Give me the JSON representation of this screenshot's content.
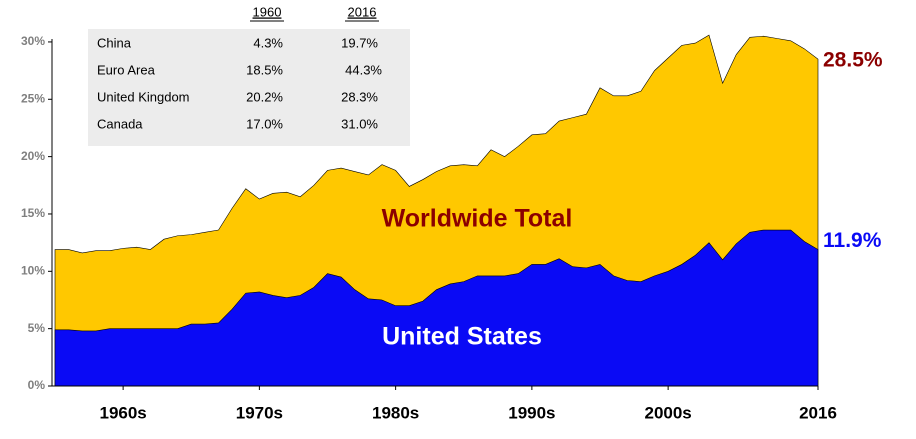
{
  "chart_data": {
    "type": "area",
    "x": [
      1960,
      1961,
      1962,
      1963,
      1964,
      1965,
      1966,
      1967,
      1968,
      1969,
      1970,
      1971,
      1972,
      1973,
      1974,
      1975,
      1976,
      1977,
      1978,
      1979,
      1980,
      1981,
      1982,
      1983,
      1984,
      1985,
      1986,
      1987,
      1988,
      1989,
      1990,
      1991,
      1992,
      1993,
      1994,
      1995,
      1996,
      1997,
      1998,
      1999,
      2000,
      2001,
      2002,
      2003,
      2004,
      2005,
      2006,
      2007,
      2008,
      2009,
      2010,
      2011,
      2012,
      2013,
      2014,
      2015,
      2016
    ],
    "series": [
      {
        "name": "Worldwide Total",
        "color": "#ffc800",
        "label_color": "#8b0000",
        "value_label_color": "#8b0000",
        "values": [
          11.9,
          11.9,
          11.6,
          11.8,
          11.8,
          12.0,
          12.1,
          11.9,
          12.8,
          13.1,
          13.2,
          13.4,
          13.6,
          15.5,
          17.2,
          16.3,
          16.8,
          16.9,
          16.5,
          17.5,
          18.8,
          19.0,
          18.7,
          18.4,
          19.3,
          18.8,
          17.4,
          18.0,
          18.7,
          19.2,
          19.3,
          19.2,
          20.6,
          20.0,
          20.9,
          21.9,
          22.0,
          23.1,
          23.4,
          23.7,
          26.0,
          25.3,
          25.3,
          25.7,
          27.5,
          28.6,
          29.7,
          29.9,
          30.6,
          26.4,
          28.9,
          30.4,
          30.5,
          30.3,
          30.1,
          29.4,
          28.5
        ],
        "value_labels": [
          null,
          null,
          null,
          null,
          null,
          null,
          null,
          null,
          null,
          null,
          null,
          null,
          null,
          null,
          null,
          null,
          null,
          null,
          null,
          null,
          null,
          null,
          null,
          null,
          null,
          null,
          null,
          null,
          null,
          null,
          null,
          null,
          null,
          null,
          null,
          null,
          null,
          null,
          null,
          null,
          null,
          null,
          null,
          null,
          null,
          null,
          null,
          null,
          null,
          null,
          null,
          null,
          null,
          null,
          null,
          null,
          "28.5%"
        ]
      },
      {
        "name": "United States",
        "color": "#0a0af5",
        "label_color": "#ffffff",
        "value_label_color": "#0a0af5",
        "values": [
          4.9,
          4.9,
          4.8,
          4.8,
          5.0,
          5.0,
          5.0,
          5.0,
          5.0,
          5.0,
          5.4,
          5.4,
          5.5,
          6.7,
          8.1,
          8.2,
          7.9,
          7.7,
          7.9,
          8.6,
          9.8,
          9.5,
          8.4,
          7.6,
          7.5,
          7.0,
          7.0,
          7.4,
          8.4,
          8.9,
          9.1,
          9.6,
          9.6,
          9.6,
          9.8,
          10.6,
          10.6,
          11.1,
          10.4,
          10.3,
          10.6,
          9.6,
          9.2,
          9.1,
          9.6,
          10.0,
          10.6,
          11.4,
          12.5,
          11.0,
          12.4,
          13.4,
          13.6,
          13.6,
          13.6,
          12.6,
          11.9
        ],
        "value_labels": [
          null,
          null,
          null,
          null,
          null,
          null,
          null,
          null,
          null,
          null,
          null,
          null,
          null,
          null,
          null,
          null,
          null,
          null,
          null,
          null,
          null,
          null,
          null,
          null,
          null,
          null,
          null,
          null,
          null,
          null,
          null,
          null,
          null,
          null,
          null,
          null,
          null,
          null,
          null,
          null,
          null,
          null,
          null,
          null,
          null,
          null,
          null,
          null,
          null,
          null,
          null,
          null,
          null,
          null,
          null,
          null,
          "11.9%"
        ]
      }
    ],
    "xlim": [
      1960,
      2016
    ],
    "xticks": [
      {
        "value": 1965,
        "label": "1960s"
      },
      {
        "value": 1975,
        "label": "1970s"
      },
      {
        "value": 1985,
        "label": "1980s"
      },
      {
        "value": 1995,
        "label": "1990s"
      },
      {
        "value": 2005,
        "label": "2000s"
      },
      2016
    ],
    "ylim": [
      0,
      32
    ],
    "yticks": [
      {
        "value": 0,
        "label": "0%"
      },
      {
        "value": 5,
        "label": "5%"
      },
      {
        "value": 10,
        "label": "10%"
      },
      {
        "value": 15,
        "label": "15%"
      },
      {
        "value": 20,
        "label": "20%"
      },
      {
        "value": 25,
        "label": "25%"
      },
      {
        "value": 30,
        "label": "30%"
      }
    ],
    "table": {
      "columns": [
        "1960",
        "2016"
      ],
      "rows": [
        [
          "China",
          "4.3%",
          "19.7%"
        ],
        [
          "Euro Area",
          "18.5%",
          "44.3%"
        ],
        [
          "United Kingdom",
          "20.2%",
          "28.3%"
        ],
        [
          "Canada",
          "17.0%",
          "31.0%"
        ]
      ]
    }
  }
}
